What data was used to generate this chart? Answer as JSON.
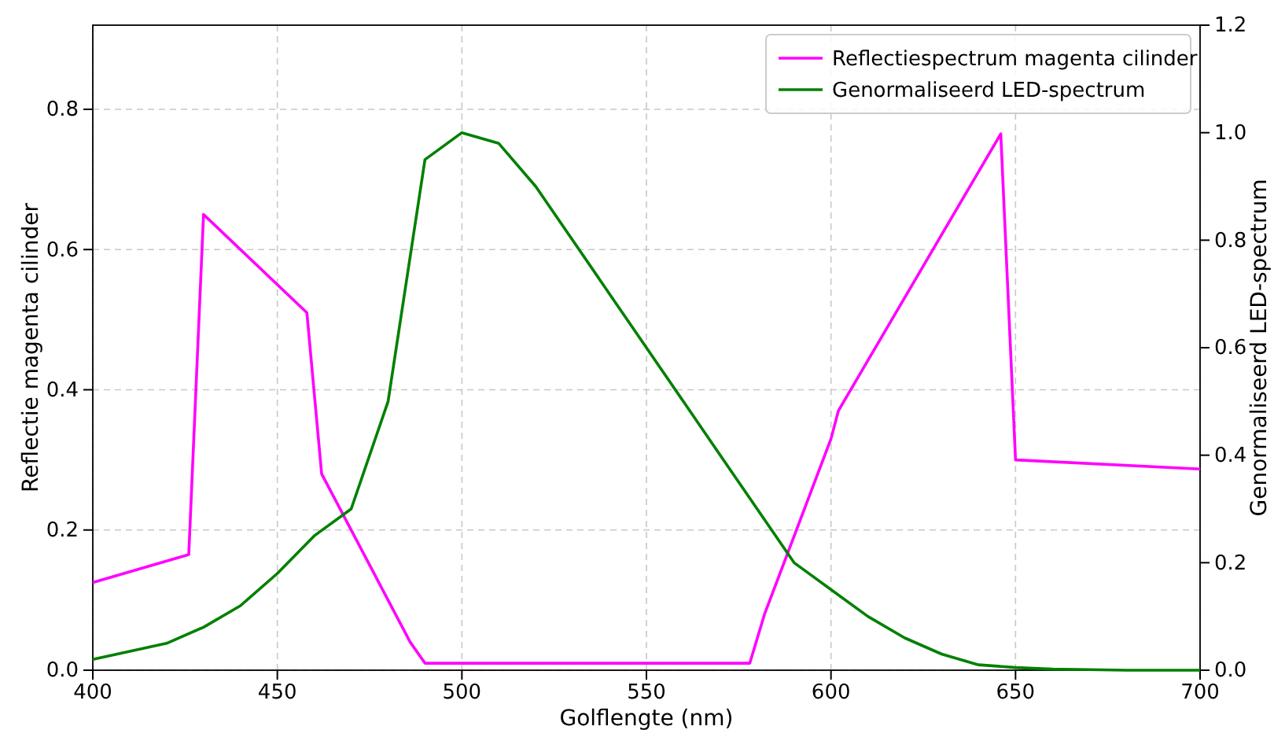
{
  "chart_data": {
    "type": "line",
    "xlabel": "Golflengte (nm)",
    "ylabel": "Reflectie magenta cilinder",
    "y2label": "Genormaliseerd LED-spectrum",
    "x": [
      400,
      426,
      430,
      458,
      462,
      480,
      486,
      490,
      578,
      582,
      600,
      602,
      646,
      650,
      700
    ],
    "series": [
      {
        "name": "Reflectiespectrum magenta cilinder",
        "color": "#ff00ff",
        "values": [
          0.125,
          0.165,
          0.65,
          0.51,
          0.28,
          0.1,
          0.04,
          0.01,
          0.01,
          0.08,
          0.33,
          0.37,
          0.765,
          0.3,
          0.287
        ]
      },
      {
        "name": "Genormaliseerd LED-spectrum",
        "color": "#008000",
        "axis": "y2",
        "x": [
          400,
          410,
          420,
          430,
          440,
          450,
          460,
          470,
          480,
          490,
          500,
          510,
          520,
          530,
          540,
          550,
          560,
          570,
          580,
          590,
          600,
          610,
          620,
          630,
          640,
          650,
          660,
          670,
          680,
          690,
          700
        ],
        "values": [
          0.02,
          0.035,
          0.05,
          0.08,
          0.12,
          0.18,
          0.25,
          0.3,
          0.5,
          0.95,
          1.0,
          0.98,
          0.9,
          0.8,
          0.7,
          0.6,
          0.5,
          0.4,
          0.3,
          0.2,
          0.15,
          0.1,
          0.06,
          0.03,
          0.01,
          0.005,
          0.002,
          0.001,
          0,
          0,
          0
        ]
      }
    ],
    "xlim": [
      400,
      700
    ],
    "xticks": [
      400,
      450,
      500,
      550,
      600,
      650,
      700
    ],
    "ylim": [
      0,
      0.92
    ],
    "yticks": [
      {
        "value": 0,
        "label": "0.0"
      },
      0.2,
      0.4,
      0.6,
      0.8
    ],
    "y2lim": [
      0,
      1.2
    ],
    "y2ticks": [
      {
        "value": 0,
        "label": "0.0"
      },
      0.2,
      0.4,
      0.6,
      0.8,
      {
        "value": 1,
        "label": "1.0"
      },
      1.2
    ],
    "grid": true,
    "legend": "top right",
    "line_style": "solid"
  }
}
